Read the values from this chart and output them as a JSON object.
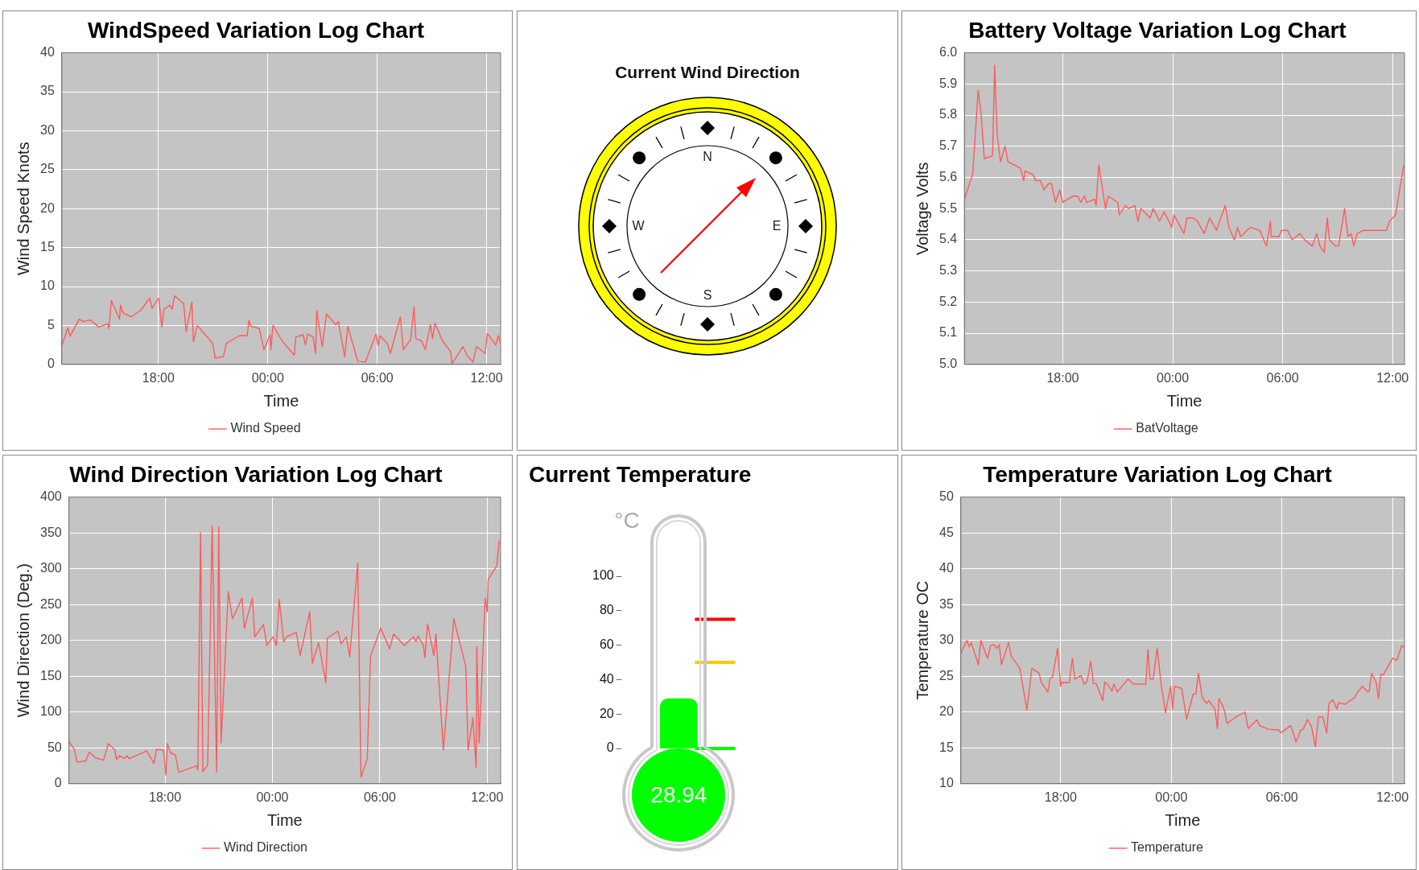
{
  "chart_data": [
    {
      "type": "line",
      "title": "WindSpeed Variation Log Chart",
      "xlabel": "Time",
      "ylabel": "Wind Speed Knots",
      "legend": "bottom",
      "grid": true,
      "xlim": [
        "--01-01T12:42",
        "--01-02T12:46"
      ],
      "xticks": [
        {
          "value": "--01-01T18:00",
          "label": "18:00"
        },
        {
          "value": "--01-02T00:00",
          "label": "00:00"
        },
        {
          "value": "--01-02T06:00",
          "label": "06:00"
        },
        {
          "value": "--01-02T12:00",
          "label": "12:00"
        }
      ],
      "ylim": [
        0,
        40
      ],
      "yticks": [
        0,
        5,
        10,
        15,
        20,
        25,
        30,
        35,
        40
      ],
      "x": [
        "--01-01T12:42",
        "--01-01T13:02",
        "--01-01T13:09",
        "--01-01T13:39",
        "--01-01T13:54",
        "--01-01T14:16",
        "--01-01T14:44",
        "--01-01T15:13",
        "--01-01T15:17",
        "--01-01T15:25",
        "--01-01T15:52",
        "--01-01T15:55",
        "--01-01T16:04",
        "--01-01T16:31",
        "--01-01T17:03",
        "--01-01T17:31",
        "--01-01T17:39",
        "--01-01T18:01",
        "--01-01T18:11",
        "--01-01T18:18",
        "--01-01T18:38",
        "--01-01T18:45",
        "--01-01T18:53",
        "--01-01T19:23",
        "--01-01T19:31",
        "--01-01T19:50",
        "--01-01T19:55",
        "--01-01T20:08",
        "--01-01T20:58",
        "--01-01T21:07",
        "--01-01T21:34",
        "--01-01T21:43",
        "--01-01T22:27",
        "--01-01T22:52",
        "--01-01T22:58",
        "--01-01T23:04",
        "--01-01T23:32",
        "--01-01T23:47",
        "--01-02T00:07",
        "--01-02T00:10",
        "--01-02T00:17",
        "--01-02T00:47",
        "--01-02T01:27",
        "--01-02T01:32",
        "--01-02T01:56",
        "--01-02T02:04",
        "--01-02T02:11",
        "--01-02T02:29",
        "--01-02T02:37",
        "--01-02T02:41",
        "--01-02T02:59",
        "--01-02T03:13",
        "--01-02T03:43",
        "--01-02T03:52",
        "--01-02T04:13",
        "--01-02T04:23",
        "--01-02T04:56",
        "--01-02T05:21",
        "--01-02T05:56",
        "--01-02T06:03",
        "--01-02T06:09",
        "--01-02T06:33",
        "--01-02T06:43",
        "--01-02T07:16",
        "--01-02T07:26",
        "--01-02T07:50",
        "--01-02T08:01",
        "--01-02T08:07",
        "--01-02T08:26",
        "--01-02T08:38",
        "--01-02T08:55",
        "--01-02T09:02",
        "--01-02T09:10",
        "--01-02T09:35",
        "--01-02T10:02",
        "--01-02T10:06",
        "--01-02T10:42",
        "--01-02T10:55",
        "--01-02T11:15",
        "--01-02T11:27",
        "--01-02T11:55",
        "--01-02T12:02",
        "--01-02T12:30",
        "--01-02T12:38",
        "--01-02T12:45"
      ],
      "series": [
        {
          "name": "Wind Speed",
          "color": "#ff5a5a",
          "values": [
            2.4,
            4.7,
            3.6,
            5.8,
            5.5,
            5.7,
            4.8,
            5.2,
            4.6,
            8.2,
            5.8,
            7.6,
            6.6,
            6.1,
            7.0,
            8.5,
            7.2,
            8.5,
            4.8,
            7.1,
            7.6,
            7.1,
            8.8,
            7.8,
            4.2,
            8.0,
            2.9,
            5.0,
            2.7,
            0.8,
            1.0,
            2.7,
            3.7,
            3.7,
            5.7,
            4.9,
            4.6,
            1.9,
            3.8,
            1.9,
            5.0,
            3.0,
            1.2,
            3.5,
            3.8,
            2.5,
            3.9,
            3.5,
            1.4,
            6.9,
            2.3,
            6.5,
            5.1,
            5.5,
            1.0,
            4.9,
            0.4,
            0.3,
            3.9,
            2.4,
            3.7,
            2.7,
            1.4,
            6.1,
            1.9,
            3.2,
            7.4,
            3.3,
            3.0,
            1.9,
            5.1,
            3.3,
            5.3,
            3.0,
            1.6,
            0.1,
            2.3,
            1.2,
            0.3,
            2.3,
            1.4,
            4.0,
            2.5,
            3.7,
            2.7
          ]
        }
      ]
    },
    {
      "type": "other",
      "title": "Current Wind Direction",
      "annotations": [
        "N",
        "E",
        "S",
        "W"
      ]
    },
    {
      "type": "line",
      "title": "Battery Voltage Variation Log Chart",
      "xlabel": "Time",
      "ylabel": "Voltage Volts",
      "legend": "bottom",
      "grid": true,
      "xlim": [
        "--01-01T12:38",
        "--01-02T12:39"
      ],
      "xticks": [
        {
          "value": "--01-01T18:00",
          "label": "18:00"
        },
        {
          "value": "--01-02T00:00",
          "label": "00:00"
        },
        {
          "value": "--01-02T06:00",
          "label": "06:00"
        },
        {
          "value": "--01-02T12:00",
          "label": "12:00"
        }
      ],
      "ylim": [
        5,
        6
      ],
      "yticks": [
        {
          "value": 5,
          "label": "5.0"
        },
        5.1,
        5.2,
        5.3,
        5.4,
        5.5,
        5.6,
        5.7,
        5.8,
        5.9,
        {
          "value": 6,
          "label": "6.0"
        }
      ],
      "x": [
        "--01-01T12:38",
        "--01-01T13:05",
        "--01-01T13:23",
        "--01-01T13:33",
        "--01-01T13:43",
        "--01-01T14:10",
        "--01-01T14:17",
        "--01-01T14:25",
        "--01-01T14:36",
        "--01-01T14:51",
        "--01-01T15:01",
        "--01-01T15:21",
        "--01-01T15:41",
        "--01-01T15:52",
        "--01-01T15:56",
        "--01-01T16:22",
        "--01-01T16:32",
        "--01-01T16:47",
        "--01-01T16:58",
        "--01-01T17:13",
        "--01-01T17:23",
        "--01-01T17:36",
        "--01-01T17:50",
        "--01-01T18:00",
        "--01-01T18:34",
        "--01-01T18:49",
        "--01-01T18:59",
        "--01-01T19:11",
        "--01-01T19:19",
        "--01-01T19:44",
        "--01-01T19:49",
        "--01-01T19:58",
        "--01-01T20:20",
        "--01-01T20:29",
        "--01-01T21:00",
        "--01-01T21:05",
        "--01-01T21:25",
        "--01-01T21:35",
        "--01-01T21:56",
        "--01-01T22:06",
        "--01-01T22:16",
        "--01-01T22:46",
        "--01-01T22:56",
        "--01-01T23:17",
        "--01-01T23:32",
        "--01-01T23:57",
        "--01-02T00:04",
        "--01-02T00:37",
        "--01-02T00:47",
        "--01-02T01:08",
        "--01-02T01:21",
        "--01-02T01:43",
        "--01-02T02:01",
        "--01-02T02:13",
        "--01-02T02:23",
        "--01-02T02:52",
        "--01-02T03:04",
        "--01-02T03:22",
        "--01-02T03:32",
        "--01-02T03:43",
        "--01-02T04:03",
        "--01-02T04:15",
        "--01-02T04:45",
        "--01-02T05:07",
        "--01-02T05:20",
        "--01-02T05:23",
        "--01-02T05:48",
        "--01-02T05:56",
        "--01-02T06:16",
        "--01-02T06:31",
        "--01-02T06:56",
        "--01-02T07:12",
        "--01-02T07:37",
        "--01-02T07:52",
        "--01-02T08:02",
        "--01-02T08:16",
        "--01-02T08:26",
        "--01-02T08:33",
        "--01-02T08:53",
        "--01-02T09:03",
        "--01-02T09:23",
        "--01-02T09:34",
        "--01-02T09:44",
        "--01-02T09:53",
        "--01-02T10:04",
        "--01-02T10:24",
        "--01-02T10:47",
        "--01-02T11:40",
        "--01-02T11:50",
        "--01-02T12:10",
        "--01-02T12:23",
        "--01-02T12:37"
      ],
      "series": [
        {
          "name": "BatVoltage",
          "color": "#ff5a5a",
          "values": [
            5.53,
            5.61,
            5.88,
            5.8,
            5.66,
            5.67,
            5.96,
            5.74,
            5.65,
            5.7,
            5.65,
            5.64,
            5.63,
            5.59,
            5.62,
            5.61,
            5.59,
            5.59,
            5.56,
            5.58,
            5.58,
            5.52,
            5.56,
            5.52,
            5.54,
            5.54,
            5.52,
            5.54,
            5.52,
            5.53,
            5.51,
            5.64,
            5.5,
            5.54,
            5.52,
            5.48,
            5.51,
            5.5,
            5.51,
            5.46,
            5.5,
            5.47,
            5.5,
            5.46,
            5.49,
            5.44,
            5.48,
            5.42,
            5.47,
            5.47,
            5.46,
            5.42,
            5.47,
            5.45,
            5.43,
            5.51,
            5.44,
            5.4,
            5.44,
            5.41,
            5.43,
            5.44,
            5.43,
            5.38,
            5.46,
            5.41,
            5.41,
            5.43,
            5.43,
            5.4,
            5.42,
            5.4,
            5.38,
            5.42,
            5.38,
            5.36,
            5.47,
            5.4,
            5.38,
            5.38,
            5.5,
            5.41,
            5.42,
            5.38,
            5.42,
            5.43,
            5.43,
            5.43,
            5.46,
            5.48,
            5.56,
            5.64
          ]
        }
      ]
    },
    {
      "type": "line",
      "title": "Wind Direction Variation Log Chart",
      "xlabel": "Time",
      "ylabel": "Wind Direction (Deg.)",
      "legend": "bottom",
      "grid": true,
      "xlim": [
        "--01-01T12:38",
        "--01-02T12:45"
      ],
      "xticks": [
        {
          "value": "--01-01T18:00",
          "label": "18:00"
        },
        {
          "value": "--01-02T00:00",
          "label": "00:00"
        },
        {
          "value": "--01-02T06:00",
          "label": "06:00"
        },
        {
          "value": "--01-02T12:00",
          "label": "12:00"
        }
      ],
      "ylim": [
        0,
        400
      ],
      "yticks": [
        0,
        50,
        100,
        150,
        200,
        250,
        300,
        350,
        400
      ],
      "x": [
        "--01-01T12:38",
        "--01-01T12:56",
        "--01-01T13:05",
        "--01-01T13:35",
        "--01-01T13:46",
        "--01-01T14:08",
        "--01-01T14:34",
        "--01-01T14:50",
        "--01-01T15:12",
        "--01-01T15:17",
        "--01-01T15:28",
        "--01-01T15:44",
        "--01-01T15:53",
        "--01-01T16:00",
        "--01-01T16:59",
        "--01-01T17:23",
        "--01-01T17:31",
        "--01-01T17:55",
        "--01-01T18:03",
        "--01-01T18:08",
        "--01-01T18:19",
        "--01-01T18:35",
        "--01-01T18:46",
        "--01-01T19:45",
        "--01-01T19:50",
        "--01-01T19:59",
        "--01-01T20:07",
        "--01-01T20:23",
        "--01-01T20:38",
        "--01-01T20:53",
        "--01-01T21:00",
        "--01-01T21:08",
        "--01-01T21:32",
        "--01-01T21:46",
        "--01-01T22:18",
        "--01-01T22:26",
        "--01-01T22:53",
        "--01-01T23:01",
        "--01-01T23:30",
        "--01-01T23:41",
        "--01-02T00:02",
        "--01-02T00:13",
        "--01-02T00:23",
        "--01-02T00:38",
        "--01-02T00:48",
        "--01-02T01:20",
        "--01-02T01:33",
        "--01-02T02:05",
        "--01-02T02:14",
        "--01-02T02:35",
        "--01-02T02:59",
        "--01-02T03:04",
        "--01-02T03:40",
        "--01-02T03:50",
        "--01-02T04:08",
        "--01-02T04:19",
        "--01-02T04:46",
        "--01-02T04:57",
        "--01-02T05:18",
        "--01-02T05:29",
        "--01-02T06:03",
        "--01-02T06:33",
        "--01-02T06:46",
        "--01-02T07:22",
        "--01-02T07:53",
        "--01-02T08:01",
        "--01-02T08:08",
        "--01-02T08:26",
        "--01-02T08:31",
        "--01-02T08:40",
        "--01-02T09:01",
        "--01-02T09:08",
        "--01-02T09:33",
        "--01-02T10:08",
        "--01-02T10:48",
        "--01-02T10:56",
        "--01-02T11:12",
        "--01-02T11:23",
        "--01-02T11:25",
        "--01-02T11:33",
        "--01-02T11:53",
        "--01-02T12:00",
        "--01-02T12:03",
        "--01-02T12:32",
        "--01-02T12:40"
      ],
      "series": [
        {
          "name": "Wind Direction",
          "color": "#ff5a5a",
          "values": [
            59,
            48,
            30,
            32,
            44,
            36,
            33,
            56,
            47,
            34,
            39,
            35,
            39,
            35,
            46,
            28,
            48,
            47,
            12,
            56,
            43,
            40,
            16,
            25,
            19,
            350,
            17,
            26,
            360,
            16,
            358,
            57,
            268,
            230,
            259,
            217,
            259,
            205,
            222,
            193,
            205,
            193,
            257,
            198,
            205,
            211,
            179,
            240,
            168,
            197,
            141,
            203,
            213,
            195,
            205,
            177,
            308,
            9,
            35,
            178,
            217,
            188,
            209,
            193,
            205,
            198,
            206,
            193,
            176,
            223,
            179,
            209,
            47,
            230,
            164,
            47,
            92,
            23,
            191,
            57,
            259,
            240,
            285,
            304,
            339
          ]
        }
      ]
    },
    {
      "type": "bar",
      "title": "Current Temperature",
      "ylabel": "°C",
      "categories": [
        null
      ],
      "values": [
        28.94
      ],
      "color": "#00ff00",
      "ylim": [
        0,
        100
      ],
      "yticks": [
        0,
        20,
        40,
        60,
        80,
        100
      ],
      "data_labels": true,
      "ref_lines": [
        {
          "axis": "y",
          "value": 75,
          "color": "#ff0000"
        },
        {
          "axis": "y",
          "value": 50,
          "color": "#ffc800"
        },
        {
          "axis": "y",
          "value": 0,
          "color": "#00ff00"
        }
      ]
    },
    {
      "type": "line",
      "title": "Temperature Variation Log Chart",
      "xlabel": "Time",
      "ylabel": "Temperature OC",
      "legend": "bottom",
      "grid": true,
      "xlim": [
        "--01-01T12:35",
        "--01-02T12:39"
      ],
      "xticks": [
        {
          "value": "--01-01T18:00",
          "label": "18:00"
        },
        {
          "value": "--01-02T00:00",
          "label": "00:00"
        },
        {
          "value": "--01-02T06:00",
          "label": "06:00"
        },
        {
          "value": "--01-02T12:00",
          "label": "12:00"
        }
      ],
      "ylim": [
        10,
        50
      ],
      "yticks": [
        10,
        15,
        20,
        25,
        30,
        35,
        40,
        45,
        50
      ],
      "x": [
        "--01-01T12:35",
        "--01-01T12:55",
        "--01-01T13:02",
        "--01-01T13:09",
        "--01-01T13:32",
        "--01-01T13:40",
        "--01-01T14:02",
        "--01-01T14:12",
        "--01-01T14:22",
        "--01-01T14:32",
        "--01-01T14:40",
        "--01-01T14:47",
        "--01-01T15:10",
        "--01-01T15:19",
        "--01-01T15:47",
        "--01-01T16:10",
        "--01-01T16:26",
        "--01-01T16:50",
        "--01-01T16:56",
        "--01-01T17:18",
        "--01-01T17:26",
        "--01-01T17:33",
        "--01-01T17:50",
        "--01-01T18:00",
        "--01-01T18:03",
        "--01-01T18:28",
        "--01-01T18:38",
        "--01-01T18:46",
        "--01-01T19:06",
        "--01-01T19:16",
        "--01-01T19:26",
        "--01-01T19:38",
        "--01-01T19:46",
        "--01-01T19:55",
        "--01-01T20:17",
        "--01-01T20:23",
        "--01-01T20:37",
        "--01-01T20:47",
        "--01-01T20:53",
        "--01-01T21:04",
        "--01-01T21:39",
        "--01-01T21:57",
        "--01-01T22:37",
        "--01-01T22:44",
        "--01-01T22:51",
        "--01-01T23:01",
        "--01-01T23:14",
        "--01-01T23:27",
        "--01-01T23:41",
        "--01-01T23:58",
        "--01-02T00:04",
        "--01-02T00:11",
        "--01-02T00:34",
        "--01-02T00:50",
        "--01-02T01:11",
        "--01-02T01:20",
        "--01-02T01:28",
        "--01-02T01:41",
        "--01-02T01:55",
        "--01-02T02:02",
        "--01-02T02:22",
        "--01-02T02:30",
        "--01-02T02:35",
        "--01-02T02:50",
        "--01-02T03:02",
        "--01-02T03:30",
        "--01-02T04:00",
        "--01-02T04:10",
        "--01-02T04:38",
        "--01-02T04:48",
        "--01-02T05:16",
        "--01-02T05:50",
        "--01-02T05:56",
        "--01-02T06:29",
        "--01-02T06:46",
        "--01-02T07:01",
        "--01-02T07:09",
        "--01-02T07:23",
        "--01-02T07:36",
        "--01-02T07:49",
        "--01-02T07:59",
        "--01-02T08:13",
        "--01-02T08:26",
        "--01-02T08:33",
        "--01-02T08:46",
        "--01-02T08:59",
        "--01-02T09:04",
        "--01-02T09:26",
        "--01-02T09:56",
        "--01-02T10:07",
        "--01-02T10:22",
        "--01-02T10:37",
        "--01-02T10:44",
        "--01-02T10:52",
        "--01-02T11:07",
        "--01-02T11:14",
        "--01-02T11:22",
        "--01-02T11:30",
        "--01-02T11:42",
        "--01-02T12:00",
        "--01-02T12:14",
        "--01-02T12:30",
        "--01-02T12:39"
      ],
      "series": [
        {
          "name": "Temperature",
          "color": "#ff5a5a",
          "values": [
            28.2,
            30.0,
            29.1,
            29.7,
            26.6,
            30.0,
            27.5,
            29.3,
            29.4,
            28.9,
            29.4,
            26.6,
            29.7,
            27.8,
            26.1,
            20.3,
            26.1,
            25.4,
            24.2,
            22.8,
            24.8,
            24.8,
            28.9,
            23.6,
            24.1,
            24.1,
            27.5,
            24.6,
            25.1,
            23.9,
            24.3,
            27.1,
            24.0,
            24.0,
            21.6,
            24.2,
            23.6,
            22.9,
            23.9,
            22.8,
            24.6,
            23.9,
            23.9,
            28.7,
            24.6,
            24.6,
            28.9,
            23.8,
            19.9,
            23.6,
            20.4,
            23.6,
            23.3,
            19.0,
            22.5,
            22.5,
            25.4,
            22.0,
            21.2,
            21.6,
            20.4,
            17.7,
            21.9,
            20.6,
            18.4,
            19.3,
            20.0,
            17.7,
            18.9,
            18.1,
            17.6,
            17.5,
            17.1,
            18.1,
            15.8,
            17.5,
            17.6,
            19.0,
            18.0,
            15.2,
            19.3,
            19.3,
            17.1,
            21.2,
            21.7,
            20.4,
            21.3,
            21.1,
            22.0,
            22.8,
            23.6,
            22.9,
            22.9,
            25.4,
            24.1,
            21.9,
            25.3,
            25.2,
            26.1,
            27.5,
            27.2,
            29.3,
            29.0
          ]
        }
      ]
    }
  ]
}
